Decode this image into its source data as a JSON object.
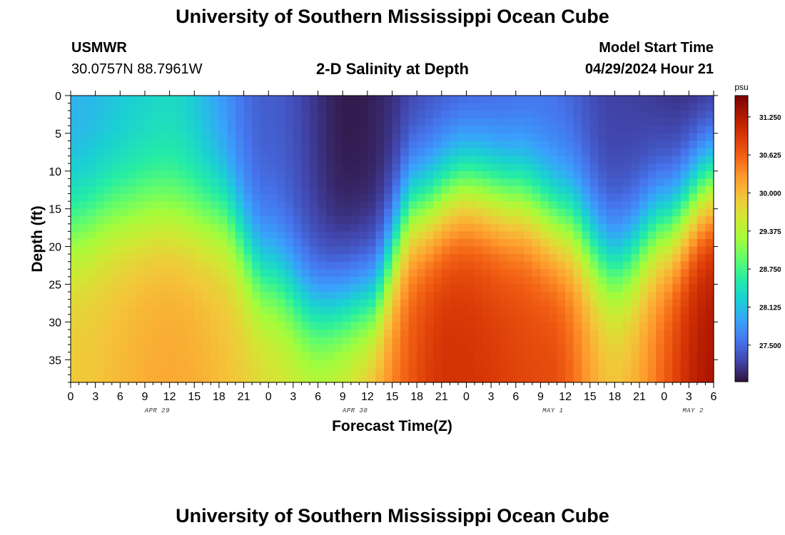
{
  "header": {
    "title_top": "University of Southern Mississippi Ocean Cube",
    "title_bottom": "University of Southern Mississippi Ocean Cube",
    "station": "USMWR",
    "coords": "30.0757N  88.7961W",
    "subtitle": "2-D Salinity at Depth",
    "start_label": "Model Start Time",
    "start_value": "04/29/2024 Hour 21"
  },
  "chart_data": {
    "type": "heatmap",
    "title": "2-D Salinity at Depth",
    "xlabel": "Forecast Time(Z)",
    "ylabel": "Depth (ft)",
    "x_ticks": [
      "0",
      "3",
      "6",
      "9",
      "12",
      "15",
      "18",
      "21",
      "0",
      "3",
      "6",
      "9",
      "12",
      "15",
      "18",
      "21",
      "0",
      "3",
      "6",
      "9",
      "12",
      "15",
      "18",
      "21",
      "0",
      "3",
      "6"
    ],
    "x_hours": [
      0,
      78
    ],
    "day_labels": [
      {
        "label": "APR 29",
        "hour": 10.5
      },
      {
        "label": "APR 30",
        "hour": 34.5
      },
      {
        "label": "MAY 1",
        "hour": 58.5
      },
      {
        "label": "MAY 2",
        "hour": 75.5
      }
    ],
    "y_ticks": [
      "0",
      "5",
      "10",
      "15",
      "20",
      "25",
      "30",
      "35"
    ],
    "ylim": [
      0,
      38
    ],
    "colorbar": {
      "unit": "psu",
      "min": 26.9,
      "max": 31.6,
      "labels": [
        "31.250",
        "30.625",
        "30.000",
        "29.375",
        "28.750",
        "28.125",
        "27.500"
      ],
      "colors": [
        "#30123b",
        "#4145ab",
        "#4675ed",
        "#39a2fc",
        "#1bcfd4",
        "#24eca6",
        "#61fc6c",
        "#a4fc3b",
        "#d1e834",
        "#f3c63a",
        "#fe9b2d",
        "#f36315",
        "#d93806",
        "#b11901",
        "#7a0402"
      ]
    },
    "thermocline": {
      "description_free": true,
      "control_points": [
        {
          "hour": 0,
          "depth": 17.5
        },
        {
          "hour": 6,
          "depth": 15.5
        },
        {
          "hour": 10,
          "depth": 15.0
        },
        {
          "hour": 18,
          "depth": 16.0
        },
        {
          "hour": 24,
          "depth": 24.0
        },
        {
          "hour": 30,
          "depth": 28.5
        },
        {
          "hour": 36,
          "depth": 27.5
        },
        {
          "hour": 42,
          "depth": 15.0
        },
        {
          "hour": 48,
          "depth": 12.0
        },
        {
          "hour": 54,
          "depth": 13.5
        },
        {
          "hour": 60,
          "depth": 17.0
        },
        {
          "hour": 66,
          "depth": 22.5
        },
        {
          "hour": 72,
          "depth": 17.5
        },
        {
          "hour": 78,
          "depth": 12.0
        }
      ],
      "bottom_max_points": [
        {
          "hour": 0,
          "value": 29.9
        },
        {
          "hour": 12,
          "value": 30.15
        },
        {
          "hour": 30,
          "value": 29.6
        },
        {
          "hour": 46,
          "value": 31.0
        },
        {
          "hour": 58,
          "value": 30.8
        },
        {
          "hour": 66,
          "value": 30.0
        },
        {
          "hour": 78,
          "value": 31.3
        }
      ],
      "surface_min_points": [
        {
          "hour": 0,
          "value": 28.0
        },
        {
          "hour": 12,
          "value": 28.3
        },
        {
          "hour": 24,
          "value": 27.4
        },
        {
          "hour": 34,
          "value": 26.95
        },
        {
          "hour": 46,
          "value": 27.3
        },
        {
          "hour": 58,
          "value": 27.5
        },
        {
          "hour": 66,
          "value": 27.2
        },
        {
          "hour": 78,
          "value": 27.0
        }
      ]
    }
  }
}
